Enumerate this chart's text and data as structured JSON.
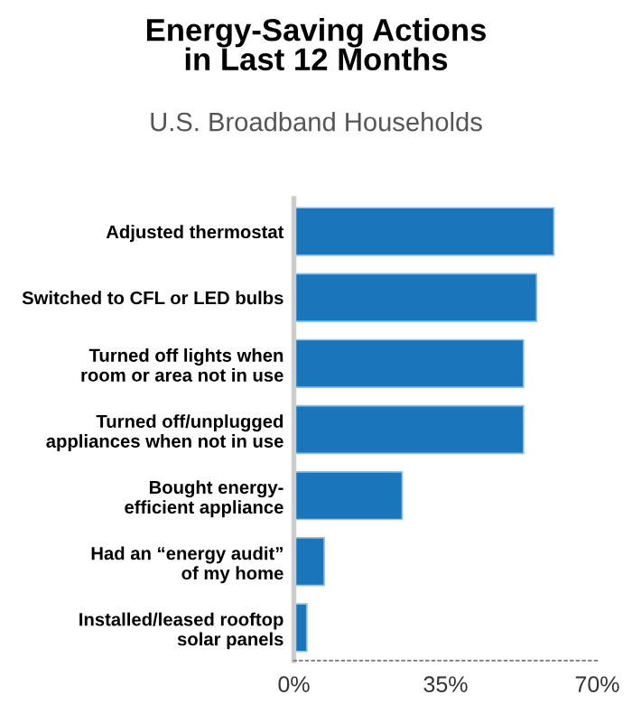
{
  "chart_data": {
    "type": "bar",
    "orientation": "horizontal",
    "title": "Energy-Saving Actions\nin Last 12 Months",
    "subtitle": "U.S. Broadband Households",
    "categories": [
      "Adjusted thermostat",
      "Switched to CFL or LED bulbs",
      "Turned off lights when\nroom or area not in use",
      "Turned off/unplugged\nappliances when not in use",
      "Bought energy-\nefficient appliance",
      "Had an “energy audit”\nof my home",
      "Installed/leased rooftop\nsolar panels"
    ],
    "values": [
      60,
      56,
      53,
      53,
      25,
      7,
      3
    ],
    "color": "#1a75bb",
    "xlim": [
      0,
      70
    ],
    "xticks": [
      {
        "value": 0,
        "label": "0%"
      },
      {
        "value": 35,
        "label": "35%"
      },
      {
        "value": 70,
        "label": "70%"
      }
    ],
    "grid": false,
    "legend": false
  }
}
